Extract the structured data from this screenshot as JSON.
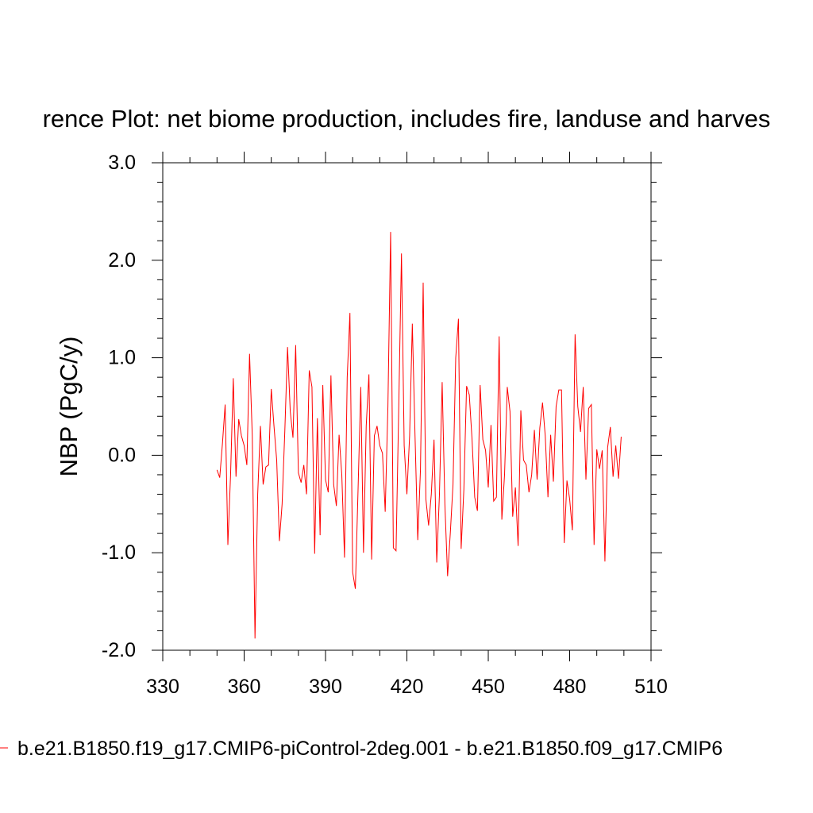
{
  "chart_data": {
    "type": "line",
    "title": "rence Plot: net biome production, includes fire, landuse and harves",
    "xlabel": "",
    "ylabel": "NBP  (PgC/y)",
    "xlim": [
      330,
      510
    ],
    "ylim": [
      -2.0,
      3.0
    ],
    "x_ticks": [
      330,
      360,
      390,
      420,
      450,
      480,
      510
    ],
    "x_tick_labels": [
      "330",
      "360",
      "390",
      "420",
      "450",
      "480",
      "510"
    ],
    "y_ticks": [
      -2.0,
      -1.0,
      0.0,
      1.0,
      2.0,
      3.0
    ],
    "y_tick_labels": [
      "-2.0",
      "-1.0",
      "0.0",
      "1.0",
      "2.0",
      "3.0"
    ],
    "grid": false,
    "legend_position": "bottom",
    "series": [
      {
        "name": "b.e21.B1850.f19_g17.CMIP6-piControl-2deg.001 - b.e21.B1850.f09_g17.CMIP6",
        "color": "#ff0000",
        "x": [
          350,
          351,
          352,
          353,
          354,
          355,
          356,
          357,
          358,
          359,
          360,
          361,
          362,
          363,
          364,
          365,
          366,
          367,
          368,
          369,
          370,
          371,
          372,
          373,
          374,
          375,
          376,
          377,
          378,
          379,
          380,
          381,
          382,
          383,
          384,
          385,
          386,
          387,
          388,
          389,
          390,
          391,
          392,
          393,
          394,
          395,
          396,
          397,
          398,
          399,
          400,
          401,
          402,
          403,
          404,
          405,
          406,
          407,
          408,
          409,
          410,
          411,
          412,
          413,
          414,
          415,
          416,
          417,
          418,
          419,
          420,
          421,
          422,
          423,
          424,
          425,
          426,
          427,
          428,
          429,
          430,
          431,
          432,
          433,
          434,
          435,
          436,
          437,
          438,
          439,
          440,
          441,
          442,
          443,
          444,
          445,
          446,
          447,
          448,
          449,
          450,
          451,
          452,
          453,
          454,
          455,
          456,
          457,
          458,
          459,
          460,
          461,
          462,
          463,
          464,
          465,
          466,
          467,
          468,
          469,
          470,
          471,
          472,
          473,
          474,
          475,
          476,
          477,
          478,
          479,
          480,
          481,
          482,
          483,
          484,
          485,
          486,
          487,
          488,
          489,
          490,
          491,
          492,
          493,
          494,
          495,
          496,
          497,
          498,
          499
        ],
        "values": [
          -0.15,
          -0.23,
          0.12,
          0.52,
          -0.92,
          -0.2,
          0.79,
          -0.22,
          0.37,
          0.2,
          0.1,
          -0.1,
          1.04,
          0.2,
          -1.88,
          -0.4,
          0.3,
          -0.3,
          -0.12,
          -0.1,
          0.68,
          0.3,
          -0.05,
          -0.88,
          -0.5,
          0.25,
          1.11,
          0.45,
          0.18,
          1.13,
          -0.18,
          -0.28,
          -0.1,
          -0.4,
          0.87,
          0.7,
          -1.01,
          0.38,
          -0.82,
          0.72,
          -0.25,
          -0.38,
          0.82,
          -0.3,
          -0.52,
          0.21,
          -0.2,
          -1.05,
          0.8,
          1.46,
          -1.2,
          -1.37,
          -0.35,
          0.7,
          -1.0,
          0.3,
          0.83,
          -1.07,
          0.2,
          0.3,
          0.1,
          0.02,
          -0.58,
          0.5,
          2.29,
          -0.95,
          -0.98,
          0.5,
          2.07,
          0.1,
          -0.4,
          0.2,
          1.35,
          0.2,
          -0.87,
          -0.15,
          1.77,
          -0.45,
          -0.72,
          -0.4,
          0.16,
          -1.1,
          -0.4,
          0.75,
          -0.5,
          -1.24,
          -0.8,
          -0.3,
          1.0,
          1.4,
          -0.96,
          -0.35,
          0.71,
          0.62,
          0.17,
          -0.43,
          -0.57,
          0.72,
          0.16,
          0.05,
          -0.33,
          0.31,
          -0.47,
          -0.43,
          1.22,
          -0.66,
          -0.2,
          0.7,
          0.45,
          -0.63,
          -0.33,
          -0.93,
          0.46,
          -0.05,
          -0.1,
          -0.38,
          -0.2,
          0.26,
          -0.25,
          0.28,
          0.54,
          0.2,
          -0.43,
          0.21,
          -0.27,
          0.5,
          0.67,
          0.67,
          -0.9,
          -0.26,
          -0.45,
          -0.77,
          1.24,
          0.5,
          0.24,
          0.7,
          -0.25,
          0.48,
          0.52,
          -0.92,
          0.06,
          -0.14,
          0.05,
          -1.09,
          0.08,
          0.29,
          -0.22,
          0.1,
          -0.24,
          0.19
        ]
      }
    ]
  }
}
